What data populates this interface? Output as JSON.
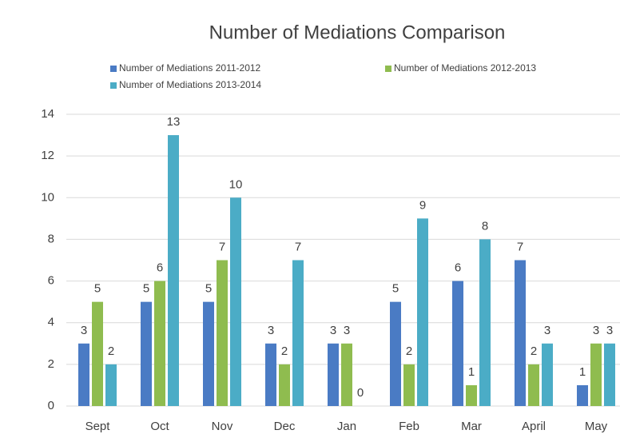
{
  "chart_data": {
    "type": "bar",
    "title": "Number of Mediations Comparison",
    "categories": [
      "Sept",
      "Oct",
      "Nov",
      "Dec",
      "Jan",
      "Feb",
      "Mar",
      "April",
      "May"
    ],
    "series": [
      {
        "name": "Number of Mediations 2011-2012",
        "color": "#4a7bc4",
        "values": [
          3,
          5,
          5,
          3,
          3,
          5,
          6,
          7,
          1
        ]
      },
      {
        "name": "Number of Mediations 2012-2013",
        "color": "#8fbc4f",
        "values": [
          5,
          6,
          7,
          2,
          3,
          2,
          1,
          2,
          3
        ]
      },
      {
        "name": "Number of Mediations 2013-2014",
        "color": "#4bacc6",
        "values": [
          2,
          13,
          10,
          7,
          0,
          9,
          8,
          3,
          3
        ]
      }
    ],
    "ylim": [
      0,
      14
    ],
    "yticks": [
      0,
      2,
      4,
      6,
      8,
      10,
      12,
      14
    ],
    "grid": true,
    "legend": "top"
  }
}
